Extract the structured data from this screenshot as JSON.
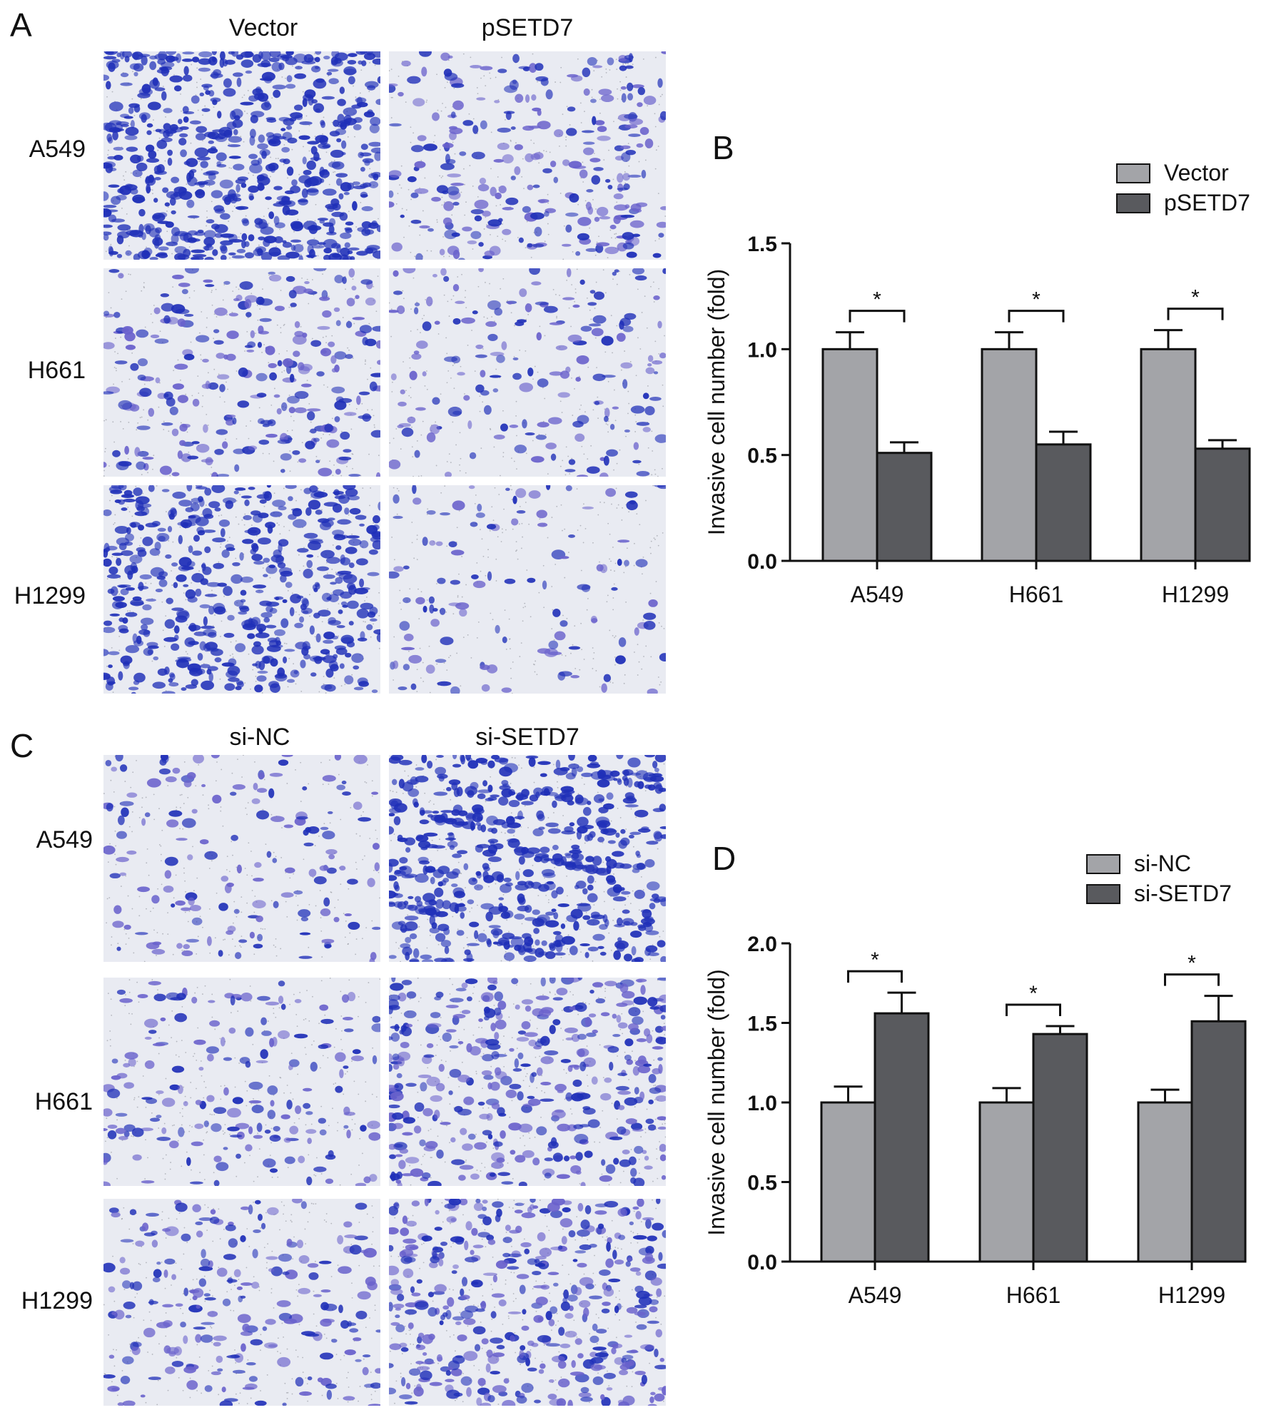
{
  "panels": {
    "A": {
      "letter": "A",
      "columns": [
        "Vector",
        "pSETD7"
      ],
      "rows": [
        "A549",
        "H661",
        "H1299"
      ]
    },
    "C": {
      "letter": "C",
      "columns": [
        "si-NC",
        "si-SETD7"
      ],
      "rows": [
        "A549",
        "H661",
        "H1299"
      ]
    },
    "B": {
      "letter": "B"
    },
    "D": {
      "letter": "D"
    }
  },
  "micrographs": {
    "A": [
      [
        0.95,
        0.35
      ],
      [
        0.35,
        0.2
      ],
      [
        0.75,
        0.12
      ]
    ],
    "C": [
      [
        0.18,
        0.85
      ],
      [
        0.22,
        0.55
      ],
      [
        0.28,
        0.6
      ]
    ]
  },
  "colors": {
    "bar_light": "#a3a4a8",
    "bar_dark": "#595a5e",
    "axis": "#111111",
    "stain_dark": "#1f2fb8",
    "stain_light": "#6a62cc",
    "background_field": "#e9ebf2"
  },
  "chart_data": [
    {
      "panel": "B",
      "type": "bar",
      "categories": [
        "A549",
        "H661",
        "H1299"
      ],
      "series": [
        {
          "name": "Vector",
          "values": [
            1.0,
            1.0,
            1.0
          ],
          "errors": [
            0.08,
            0.08,
            0.09
          ]
        },
        {
          "name": "pSETD7",
          "values": [
            0.51,
            0.55,
            0.53
          ],
          "errors": [
            0.05,
            0.06,
            0.04
          ]
        }
      ],
      "ylabel": "Invasive cell number (fold)",
      "yticks": [
        "0.0",
        "0.5",
        "1.0",
        "1.5"
      ],
      "ylim": [
        0,
        1.5
      ],
      "significance": [
        "*",
        "*",
        "*"
      ],
      "legend": "top-right",
      "grid": false
    },
    {
      "panel": "D",
      "type": "bar",
      "categories": [
        "A549",
        "H661",
        "H1299"
      ],
      "series": [
        {
          "name": "si-NC",
          "values": [
            1.0,
            1.0,
            1.0
          ],
          "errors": [
            0.1,
            0.09,
            0.08
          ]
        },
        {
          "name": "si-SETD7",
          "values": [
            1.56,
            1.43,
            1.51
          ],
          "errors": [
            0.13,
            0.05,
            0.16
          ]
        }
      ],
      "ylabel": "Invasive cell number (fold)",
      "yticks": [
        "0.0",
        "0.5",
        "1.0",
        "1.5",
        "2.0"
      ],
      "ylim": [
        0,
        2.0
      ],
      "significance": [
        "*",
        "*",
        "*"
      ],
      "legend": "top-right",
      "grid": false
    }
  ]
}
